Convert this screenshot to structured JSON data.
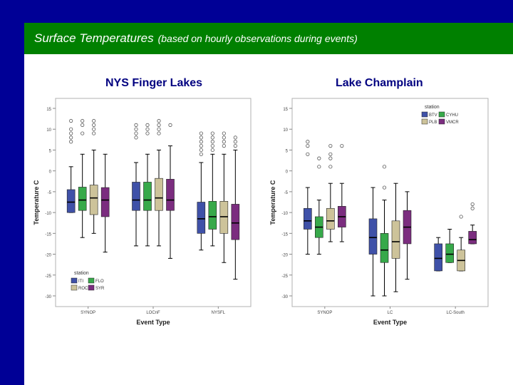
{
  "slide": {
    "title_main": "Surface Temperatures",
    "title_sub": "(based on hourly observations during events)",
    "colors": {
      "top_bar": "#000096",
      "header": "#008000"
    }
  },
  "chart_data": [
    {
      "type": "box",
      "title": "NYS Finger Lakes",
      "xlabel": "Event Type",
      "ylabel": "Temperature C",
      "ylim": [
        -30,
        15
      ],
      "yticks": [
        "15",
        "10",
        "5",
        "0",
        "-5",
        "-10",
        "-15",
        "-20",
        "-25",
        "-30"
      ],
      "categories": [
        "SYNOP",
        "LOCnF",
        "NYSFL"
      ],
      "legend": {
        "title": "station",
        "placement": "bottom-left"
      },
      "series": [
        {
          "name": "ITI",
          "color": "#3f51a8",
          "boxes": [
            {
              "min": -10,
              "q1": -10,
              "median": -7.5,
              "q3": -4.5,
              "max": 1
            },
            {
              "min": -18,
              "q1": -9.5,
              "median": -7,
              "q3": -2.7,
              "max": 2
            },
            {
              "min": -19,
              "q1": -15,
              "median": -11.5,
              "q3": -7.5,
              "max": 2
            }
          ],
          "outliers": [
            [
              10,
              12,
              7,
              8,
              9
            ],
            [
              8,
              9,
              10,
              11
            ],
            [
              5,
              6,
              7,
              8,
              9,
              4
            ]
          ]
        },
        {
          "name": "FLO",
          "color": "#37a94a",
          "boxes": [
            {
              "min": -16,
              "q1": -9.5,
              "median": -7,
              "q3": -3.9,
              "max": 4
            },
            {
              "min": -18,
              "q1": -9.5,
              "median": -7,
              "q3": -2.7,
              "max": 4
            },
            {
              "min": -18,
              "q1": -14,
              "median": -11,
              "q3": -7.3,
              "max": 4
            }
          ],
          "outliers": [
            [
              9,
              11,
              12
            ],
            [
              9,
              10,
              11
            ],
            [
              5,
              6,
              7,
              8,
              9
            ]
          ]
        },
        {
          "name": "ROC",
          "color": "#cdc39a",
          "boxes": [
            {
              "min": -15,
              "q1": -10.5,
              "median": -6.5,
              "q3": -3.4,
              "max": 5
            },
            {
              "min": -18,
              "q1": -9.5,
              "median": -6.5,
              "q3": -1.8,
              "max": 5
            },
            {
              "min": -22,
              "q1": -15,
              "median": -11,
              "q3": -7.3,
              "max": 4
            }
          ],
          "outliers": [
            [
              9,
              10,
              11,
              12
            ],
            [
              9,
              10,
              11,
              12
            ],
            [
              6,
              7,
              8,
              9
            ]
          ]
        },
        {
          "name": "SYR",
          "color": "#7b2d7f",
          "boxes": [
            {
              "min": -19.5,
              "q1": -11,
              "median": -7,
              "q3": -4,
              "max": 4
            },
            {
              "min": -21,
              "q1": -9.5,
              "median": -7,
              "q3": -2,
              "max": 6
            },
            {
              "min": -26,
              "q1": -16.5,
              "median": -12.5,
              "q3": -8,
              "max": 5
            }
          ],
          "outliers": [
            [],
            [
              11
            ],
            [
              6,
              7,
              8
            ]
          ]
        }
      ]
    },
    {
      "type": "box",
      "title": "Lake Champlain",
      "xlabel": "Event Type",
      "ylabel": "Temperature C",
      "ylim": [
        -30,
        15
      ],
      "yticks": [
        "15",
        "10",
        "5",
        "0",
        "-5",
        "-10",
        "-15",
        "-20",
        "-25",
        "-30"
      ],
      "categories": [
        "SYNOP",
        "LC",
        "LC-South"
      ],
      "legend": {
        "title": "station",
        "placement": "top-right"
      },
      "series": [
        {
          "name": "BTV",
          "color": "#3f51a8",
          "boxes": [
            {
              "min": -20,
              "q1": -14,
              "median": -12,
              "q3": -9,
              "max": -4
            },
            {
              "min": -30,
              "q1": -20,
              "median": -16,
              "q3": -11.5,
              "max": -4
            },
            {
              "min": -24,
              "q1": -24,
              "median": -21,
              "q3": -17.5,
              "max": -16
            }
          ],
          "outliers": [
            [
              4,
              6,
              7
            ],
            [],
            []
          ]
        },
        {
          "name": "CYHU",
          "color": "#37a94a",
          "boxes": [
            {
              "min": -20,
              "q1": -16,
              "median": -13.5,
              "q3": -11,
              "max": -7
            },
            {
              "min": -30,
              "q1": -22,
              "median": -19,
              "q3": -15,
              "max": -7
            },
            {
              "min": -22,
              "q1": -22,
              "median": -20,
              "q3": -17.5,
              "max": -14
            }
          ],
          "outliers": [
            [
              1,
              3
            ],
            [
              1,
              -4
            ],
            []
          ]
        },
        {
          "name": "PLB",
          "color": "#cdc39a",
          "boxes": [
            {
              "min": -17,
              "q1": -14,
              "median": -12,
              "q3": -9,
              "max": -3
            },
            {
              "min": -29,
              "q1": -21,
              "median": -17,
              "q3": -12,
              "max": -3
            },
            {
              "min": -24,
              "q1": -24,
              "median": -21.5,
              "q3": -19,
              "max": -16
            }
          ],
          "outliers": [
            [
              1,
              3,
              4,
              6
            ],
            [],
            [
              -11
            ]
          ]
        },
        {
          "name": "VMCR",
          "color": "#7b2d7f",
          "boxes": [
            {
              "min": -17,
              "q1": -13.5,
              "median": -11,
              "q3": -8.5,
              "max": -3
            },
            {
              "min": -26,
              "q1": -17.5,
              "median": -13.5,
              "q3": -9.5,
              "max": -5
            },
            {
              "min": -17.5,
              "q1": -17.5,
              "median": -16.5,
              "q3": -14.5,
              "max": -13
            }
          ],
          "outliers": [
            [
              6
            ],
            [],
            [
              -9,
              -8
            ]
          ]
        }
      ]
    }
  ]
}
